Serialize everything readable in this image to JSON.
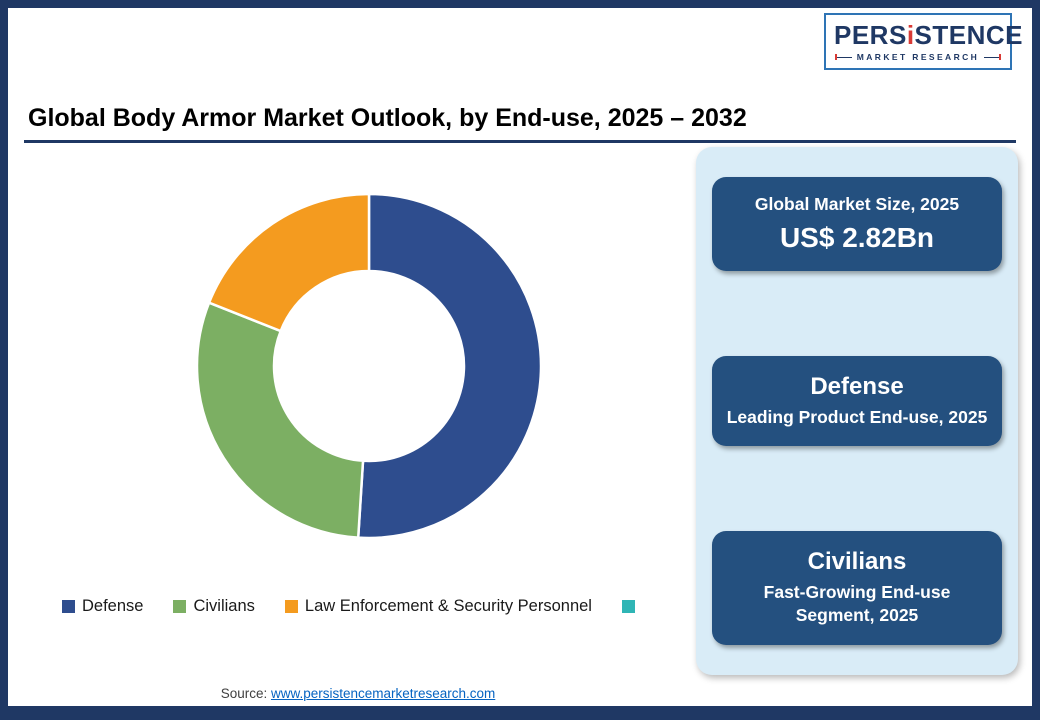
{
  "logo": {
    "part1": "PERS",
    "part2": "i",
    "part3": "STENCE",
    "tagline": "MARKET RESEARCH"
  },
  "header": {
    "title": "Global Body Armor Market Outlook, by End-use, 2025 – 2032"
  },
  "chart_data": {
    "type": "pie",
    "subtype": "donut",
    "title": "Global Body Armor Market Outlook, by End-use, 2025 – 2032",
    "categories": [
      "Defense",
      "Civilians",
      "Law Enforcement & Security Personnel"
    ],
    "values": [
      51,
      30,
      19
    ],
    "values_note": "estimated share of circle in percent (no data labels shown in image)",
    "colors": [
      "#2E4D8E",
      "#7CAF63",
      "#F49B1F"
    ],
    "start_angle": "top",
    "direction": "clockwise",
    "donut_hole_ratio": 0.55,
    "legend_position": "bottom",
    "legend": [
      {
        "label": "Defense",
        "color": "#2E4D8E"
      },
      {
        "label": "Civilians",
        "color": "#7CAF63"
      },
      {
        "label": "Law Enforcement & Security Personnel",
        "color": "#F49B1F"
      },
      {
        "label": "",
        "color": "#2FB5B5"
      }
    ]
  },
  "side_panel": {
    "cards": [
      {
        "line1": "Global Market Size, 2025",
        "line2": "US$ 2.82Bn"
      },
      {
        "line1": "Defense",
        "line2": "Leading Product End-use, 2025"
      },
      {
        "line1": "Civilians",
        "line2": "Fast-Growing End-use Segment, 2025"
      }
    ]
  },
  "footer": {
    "source_label": "Source: ",
    "source_link": "www.persistencemarketresearch.com"
  },
  "colors": {
    "frame_navy": "#1F3864",
    "title_rule": "#1F3864",
    "panel_blue": "#D9ECF7",
    "card_navy": "#24507F",
    "link_blue": "#0563C1"
  }
}
